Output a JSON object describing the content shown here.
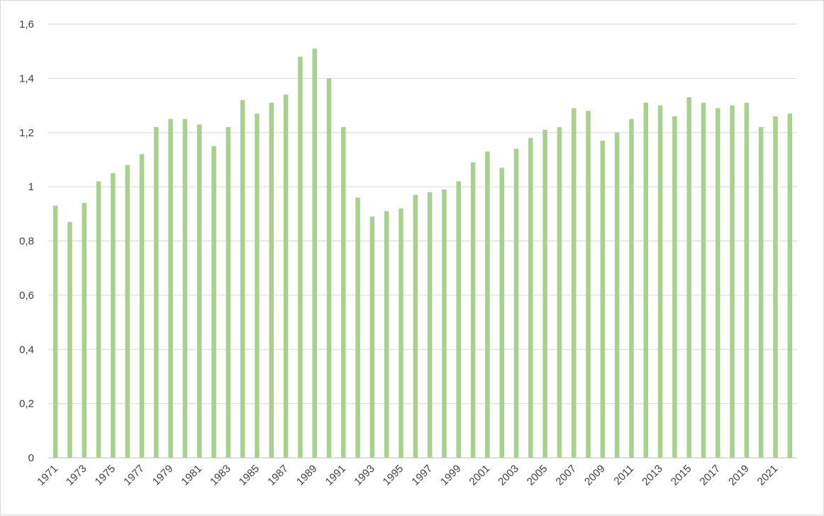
{
  "chart_data": {
    "type": "bar",
    "title": "",
    "xlabel": "",
    "ylabel": "",
    "ylim": [
      0,
      1.6
    ],
    "yticks": [
      "0",
      "0,2",
      "0,4",
      "0,6",
      "0,8",
      "1",
      "1,2",
      "1,4",
      "1,6"
    ],
    "grid": true,
    "legend": "none",
    "bar_color": "#a9d18e",
    "categories": [
      "1971",
      "1972",
      "1973",
      "1974",
      "1975",
      "1976",
      "1977",
      "1978",
      "1979",
      "1980",
      "1981",
      "1982",
      "1983",
      "1984",
      "1985",
      "1986",
      "1987",
      "1988",
      "1989",
      "1990",
      "1991",
      "1992",
      "1993",
      "1994",
      "1995",
      "1996",
      "1997",
      "1998",
      "1999",
      "2000",
      "2001",
      "2002",
      "2003",
      "2004",
      "2005",
      "2006",
      "2007",
      "2008",
      "2009",
      "2010",
      "2011",
      "2012",
      "2013",
      "2014",
      "2015",
      "2016",
      "2017",
      "2018",
      "2019",
      "2020",
      "2021",
      "2022"
    ],
    "xtick_labels": [
      "1971",
      "1973",
      "1975",
      "1977",
      "1979",
      "1981",
      "1983",
      "1985",
      "1987",
      "1989",
      "1991",
      "1993",
      "1995",
      "1997",
      "1999",
      "2001",
      "2003",
      "2005",
      "2007",
      "2009",
      "2011",
      "2013",
      "2015",
      "2017",
      "2019",
      "2021"
    ],
    "values": [
      0.93,
      0.87,
      0.94,
      1.02,
      1.05,
      1.08,
      1.12,
      1.22,
      1.25,
      1.25,
      1.23,
      1.15,
      1.22,
      1.32,
      1.27,
      1.31,
      1.34,
      1.48,
      1.51,
      1.4,
      1.22,
      0.96,
      0.89,
      0.91,
      0.92,
      0.97,
      0.98,
      0.99,
      1.02,
      1.09,
      1.13,
      1.07,
      1.14,
      1.18,
      1.21,
      1.22,
      1.29,
      1.28,
      1.17,
      1.2,
      1.25,
      1.31,
      1.3,
      1.26,
      1.33,
      1.31,
      1.29,
      1.3,
      1.31,
      1.22,
      1.26,
      1.27
    ]
  }
}
